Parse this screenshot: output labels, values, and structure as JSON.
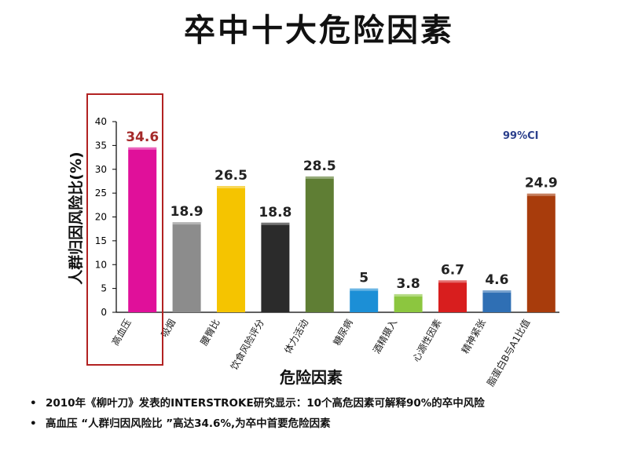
{
  "title": "卒中十大危险因素",
  "chart_data": {
    "type": "bar",
    "categories": [
      "高血压",
      "吸烟",
      "腰臀比",
      "饮食风险评分",
      "体力活动",
      "糖尿病",
      "酒精摄入",
      "心源性因素",
      "精神紧张",
      "脂蛋白B与A1比值"
    ],
    "values": [
      34.6,
      18.9,
      26.5,
      18.8,
      28.5,
      5,
      3.8,
      6.7,
      4.6,
      24.9
    ],
    "value_labels": [
      "34.6",
      "18.9",
      "26.5",
      "18.8",
      "28.5",
      "5",
      "3.8",
      "6.7",
      "4.6",
      "24.9"
    ],
    "colors": [
      "#e0109a",
      "#8c8c8c",
      "#f5c400",
      "#2b2b2b",
      "#5f7e34",
      "#1c8fd6",
      "#8cc63f",
      "#d81e1e",
      "#2f6fb4",
      "#a83c0c"
    ],
    "highlight_index": 0,
    "highlight_color": "#b22222",
    "first_label_color": "#a52a2a",
    "ylabel": "人群归因风险比(%)",
    "xlabel": "危险因素",
    "ylim": [
      0,
      40
    ],
    "yticks": [
      0,
      5,
      10,
      15,
      20,
      25,
      30,
      35,
      40
    ],
    "grid": false,
    "annotation": "99%CI",
    "annotation_color": "#2b3f8c"
  },
  "notes": [
    "2010年《柳叶刀》发表的INTERSTROKE研究显示：10个高危因素可解释90%的卒中风险",
    "高血压 “人群归因风险比 ”高达34.6%,为卒中首要危险因素"
  ],
  "bullet_symbol": "•"
}
